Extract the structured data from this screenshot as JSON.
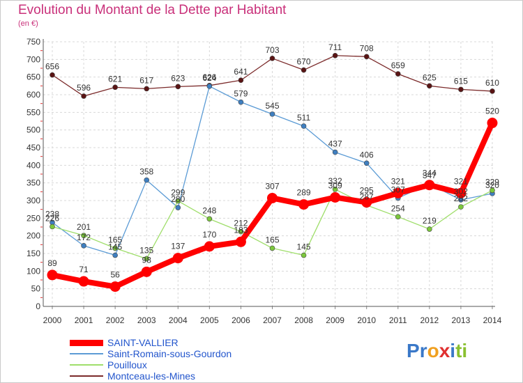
{
  "header": {
    "title": "Evolution du Montant de la Dette par Habitant",
    "subtitle": "(en €)"
  },
  "logo": {
    "text": "Proxiti",
    "colors": [
      "#3a78c8",
      "#3a78c8",
      "#f0a020",
      "#e03030",
      "#3a78c8",
      "#8ac030",
      "#8ac030"
    ]
  },
  "chart_data": {
    "type": "line",
    "title": "Evolution du Montant de la Dette par Habitant",
    "subtitle": "(en €)",
    "xlabel": "",
    "ylabel": "",
    "ylim": [
      0,
      750
    ],
    "yticks": [
      0,
      50,
      100,
      150,
      200,
      250,
      300,
      350,
      400,
      450,
      500,
      550,
      600,
      650,
      700,
      750
    ],
    "grid": true,
    "legend_position": "bottom-left",
    "x": [
      "2000",
      "2001",
      "2002",
      "2003",
      "2004",
      "2005",
      "2006",
      "2007",
      "2008",
      "2009",
      "2010",
      "2011",
      "2012",
      "2013",
      "2014"
    ],
    "series": [
      {
        "name": "Montceau-les-Mines",
        "color": "#7b2a2a",
        "marker_fill": "#5a1414",
        "width": 1.3,
        "values": [
          656,
          596,
          621,
          617,
          623,
          626,
          641,
          703,
          670,
          711,
          708,
          659,
          625,
          615,
          610
        ]
      },
      {
        "name": "Saint-Romain-sous-Gourdon",
        "color": "#5b9bd5",
        "marker_fill": "#3f7fc0",
        "width": 1.3,
        "values": [
          238,
          172,
          145,
          358,
          280,
          624,
          579,
          545,
          511,
          437,
          406,
          307,
          347,
          302,
          320
        ]
      },
      {
        "name": "Pouilloux",
        "color": "#9fde6a",
        "marker_fill": "#7cc83c",
        "width": 1.3,
        "values": [
          226,
          201,
          165,
          135,
          299,
          248,
          212,
          165,
          145,
          332,
          287,
          254,
          219,
          282,
          329
        ]
      },
      {
        "name": "SAINT-VALLIER",
        "color": "#ff0000",
        "marker_fill": "#ff0000",
        "width": 8,
        "values": [
          89,
          71,
          56,
          98,
          137,
          170,
          183,
          307,
          289,
          309,
          295,
          321,
          344,
          321,
          520
        ]
      }
    ],
    "legend_order": [
      "SAINT-VALLIER",
      "Saint-Romain-sous-Gourdon",
      "Pouilloux",
      "Montceau-les-Mines"
    ]
  }
}
